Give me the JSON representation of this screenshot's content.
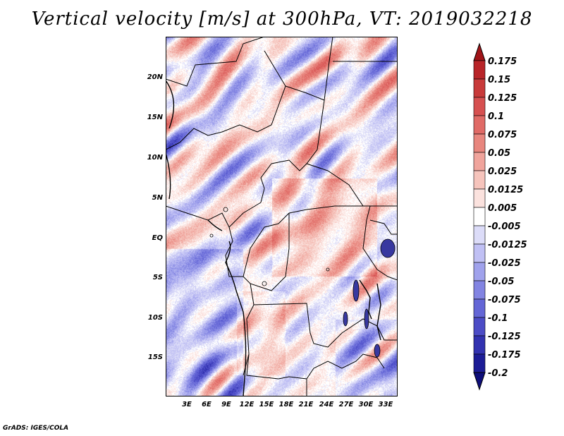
{
  "title": "Vertical velocity [m/s] at 300hPa, VT: 2019032218",
  "map": {
    "latitude_labels": [
      "20N",
      "15N",
      "10N",
      "5N",
      "EQ",
      "5S",
      "10S",
      "15S"
    ],
    "longitude_labels": [
      "3E",
      "6E",
      "9E",
      "12E",
      "15E",
      "18E",
      "21E",
      "24E",
      "27E",
      "30E",
      "33E"
    ]
  },
  "colorbar": {
    "labels": [
      "0.175",
      "0.15",
      "0.125",
      "0.1",
      "0.075",
      "0.05",
      "0.025",
      "0.0125",
      "0.005",
      "-0.005",
      "-0.0125",
      "-0.025",
      "-0.05",
      "-0.075",
      "-0.1",
      "-0.125",
      "-0.175",
      "-0.2"
    ],
    "colors": [
      "#a01418",
      "#b82428",
      "#c83a3a",
      "#d65050",
      "#e06a66",
      "#e8867e",
      "#f0a49c",
      "#f6c4bc",
      "#fbe2de",
      "#ffffff",
      "#dcdcf8",
      "#c0c0f4",
      "#a0a2ec",
      "#8284e2",
      "#6466d6",
      "#4c4cc6",
      "#3232b0",
      "#1c1c96",
      "#0e0e7a"
    ]
  },
  "credit": "GrADS: IGES/COLA"
}
